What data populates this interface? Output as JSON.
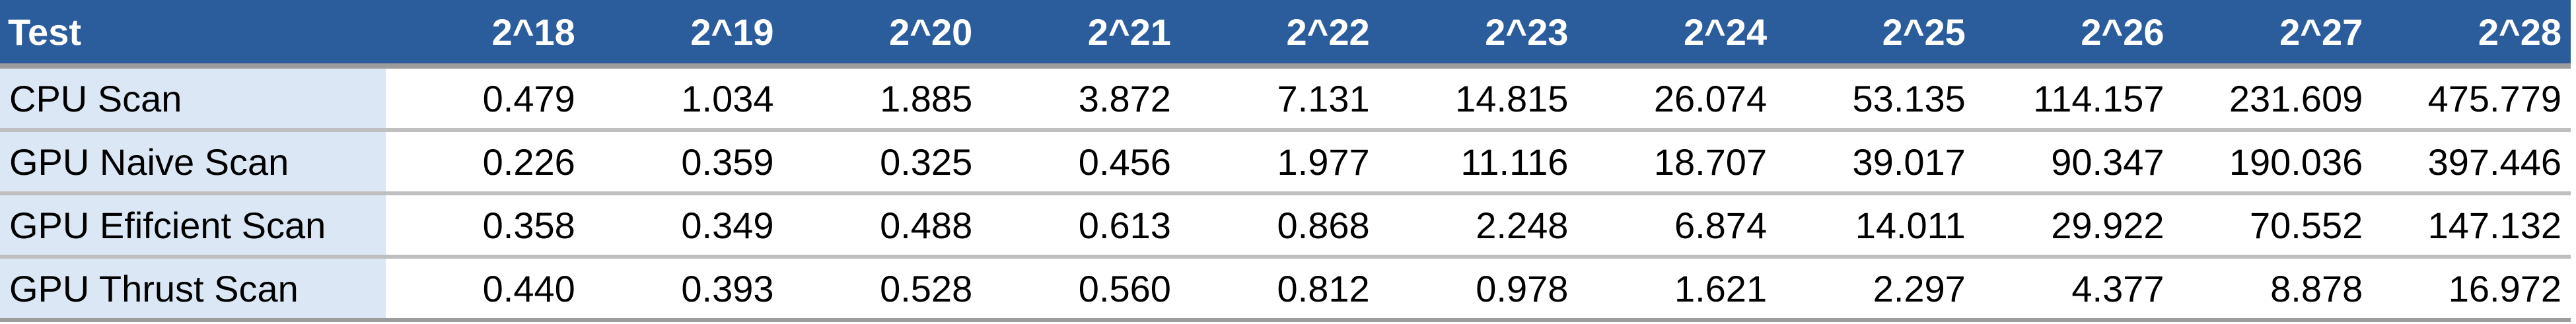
{
  "table": {
    "header": {
      "label": "Test",
      "columns": [
        "2^18",
        "2^19",
        "2^20",
        "2^21",
        "2^22",
        "2^23",
        "2^24",
        "2^25",
        "2^26",
        "2^27",
        "2^28"
      ]
    },
    "rows": [
      {
        "name": "CPU Scan",
        "values": [
          "0.479",
          "1.034",
          "1.885",
          "3.872",
          "7.131",
          "14.815",
          "26.074",
          "53.135",
          "114.157",
          "231.609",
          "475.779"
        ]
      },
      {
        "name": "GPU Naive Scan",
        "values": [
          "0.226",
          "0.359",
          "0.325",
          "0.456",
          "1.977",
          "11.116",
          "18.707",
          "39.017",
          "90.347",
          "190.036",
          "397.446"
        ]
      },
      {
        "name": "GPU Efifcient Scan",
        "values": [
          "0.358",
          "0.349",
          "0.488",
          "0.613",
          "0.868",
          "2.248",
          "6.874",
          "14.011",
          "29.922",
          "70.552",
          "147.132"
        ]
      },
      {
        "name": "GPU Thrust Scan",
        "values": [
          "0.440",
          "0.393",
          "0.528",
          "0.560",
          "0.812",
          "0.978",
          "1.621",
          "2.297",
          "4.377",
          "8.878",
          "16.972"
        ]
      }
    ],
    "colors": {
      "header_bg": "#2b5d9c",
      "header_text": "#ffffff",
      "label_cell_bg": "#dbe7f5",
      "row_divider": "#bfbfbf"
    }
  }
}
